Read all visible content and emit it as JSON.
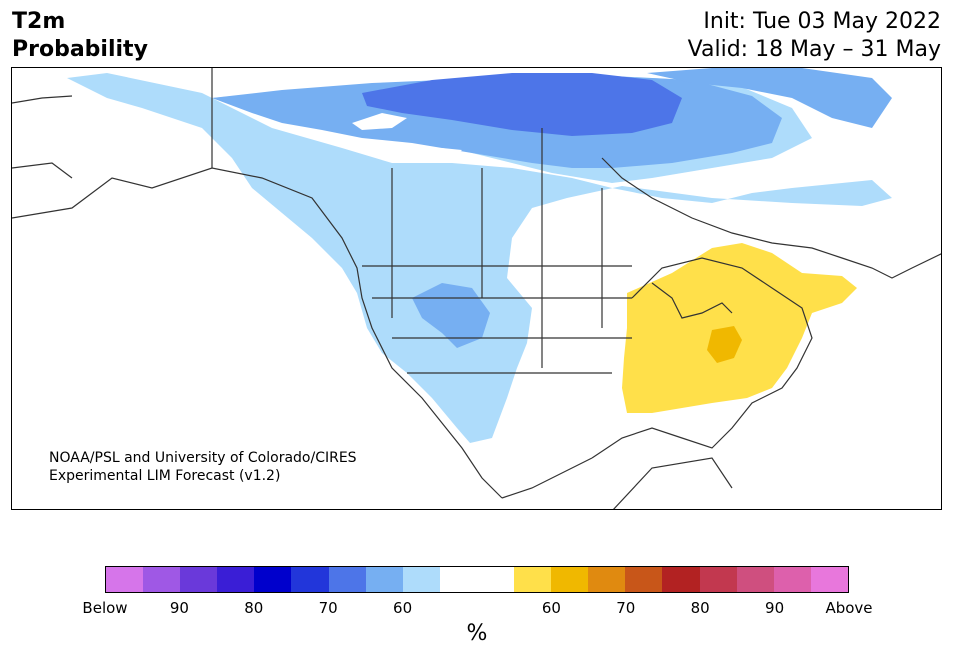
{
  "header": {
    "title_line1": "T2m",
    "title_line2": "Probability",
    "init": "Init: Tue 03 May 2022",
    "valid": "Valid: 18 May – 31 May"
  },
  "credit": {
    "line1": "NOAA/PSL and University of Colorado/CIRES",
    "line2": "Experimental LIM Forecast (v1.2)"
  },
  "colorbar": {
    "unit": "%",
    "colors": [
      "#d675ea",
      "#9f58e5",
      "#6a39da",
      "#3a1ed6",
      "#0000cc",
      "#2236da",
      "#4d75e8",
      "#76aff2",
      "#aedcfb",
      "#ffffff",
      "#ffffff",
      "#ffe04a",
      "#f0b800",
      "#e08a10",
      "#c85619",
      "#b22222",
      "#c2384f",
      "#cf4f7f",
      "#dd60ac",
      "#e877dc"
    ],
    "labels": [
      "Below",
      "90",
      "80",
      "70",
      "60",
      "60",
      "70",
      "80",
      "90",
      "Above"
    ]
  },
  "map": {
    "colors": {
      "blue_light": "#aedcfb",
      "blue_mid": "#76aff2",
      "blue_dark": "#4d75e8",
      "yellow": "#ffe04a",
      "orange": "#f0b800",
      "border": "#333333"
    }
  }
}
